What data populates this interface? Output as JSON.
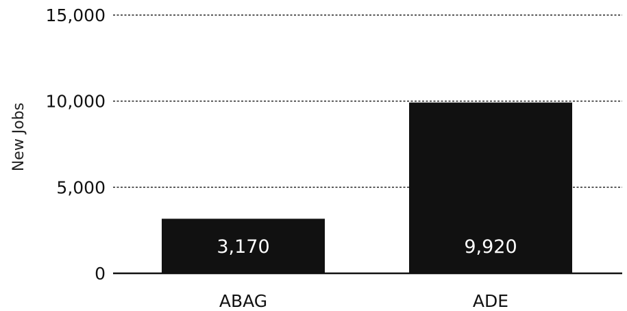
{
  "chart_data": {
    "type": "bar",
    "title": "",
    "xlabel": "",
    "ylabel": "New Jobs",
    "categories": [
      "ABAG",
      "ADE"
    ],
    "values": [
      3170,
      9920
    ],
    "data_labels": [
      "3,170",
      "9,920"
    ],
    "ylim": [
      0,
      15000
    ],
    "y_ticks": [
      0,
      5000,
      10000,
      15000
    ],
    "y_tick_labels": [
      "0",
      "5,000",
      "10,000",
      "15,000"
    ],
    "grid": true,
    "legend": "none",
    "bar_color": "#111111",
    "label_color": "#ffffff"
  }
}
